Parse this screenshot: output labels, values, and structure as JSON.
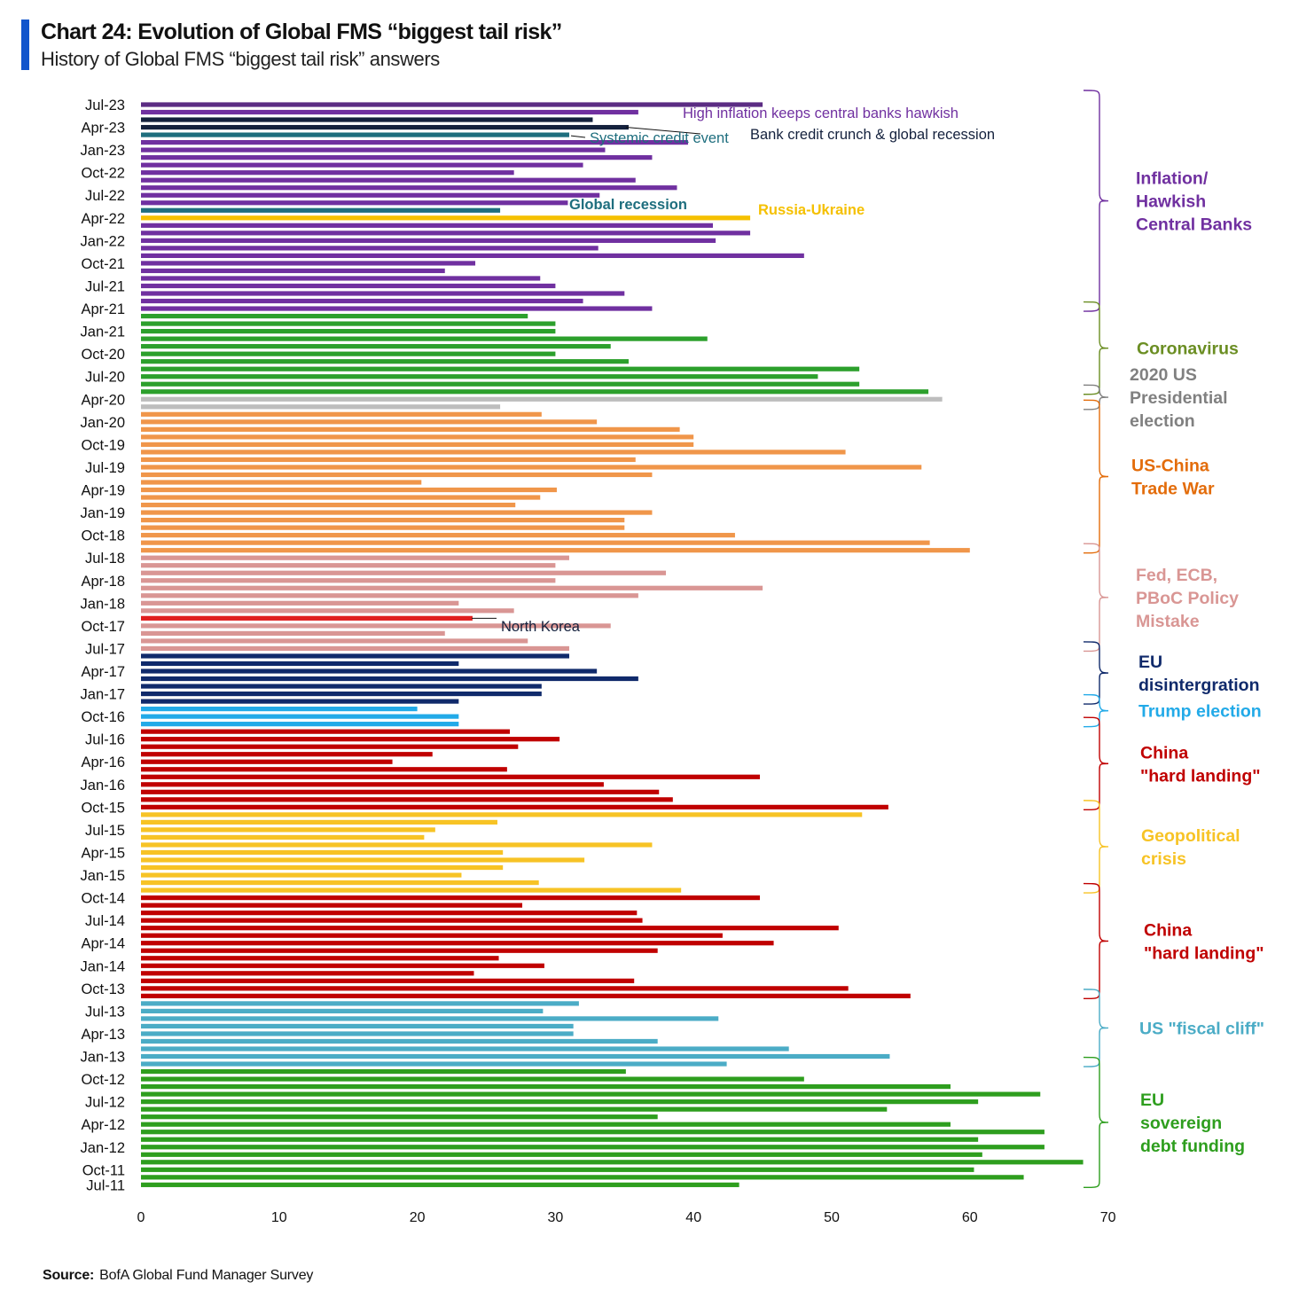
{
  "header": {
    "title": "Chart 24: Evolution of Global FMS “biggest tail risk”",
    "subtitle": "History of Global FMS “biggest tail risk” answers"
  },
  "source": {
    "label": "Source:",
    "text": "BofA Global Fund Manager Survey"
  },
  "colors": {
    "inflation": "#7030a0",
    "inflation_dark": "#5b2c83",
    "credit_crunch": "#14213d",
    "systemic": "#1e6e7e",
    "global_recession": "#1e6e7e",
    "russia": "#f5c000",
    "coronavirus": "#2ca02c",
    "coronavirus_label": "#6b8e23",
    "election2020": "#bdbdbd",
    "election2020_label": "#808080",
    "trade_war": "#f0964a",
    "trade_war_label": "#e36c0a",
    "policy": "#d99694",
    "north_korea": "#e01e1e",
    "eu_disint": "#102a6b",
    "trump": "#22aae8",
    "china": "#c00000",
    "geopolitical": "#f7c325",
    "fiscal_cliff": "#4bacc6",
    "eu_debt": "#2e9e1e"
  },
  "chart_data": {
    "type": "bar",
    "orientation": "horizontal",
    "xlim": [
      0,
      70
    ],
    "xticks": [
      0,
      10,
      20,
      30,
      40,
      50,
      60,
      70
    ],
    "ytick_labels": [
      "Jul-23",
      "Apr-23",
      "Jan-23",
      "Oct-22",
      "Jul-22",
      "Apr-22",
      "Jan-22",
      "Oct-21",
      "Jul-21",
      "Apr-21",
      "Jan-21",
      "Oct-20",
      "Jul-20",
      "Apr-20",
      "Jan-20",
      "Oct-19",
      "Jul-19",
      "Apr-19",
      "Jan-19",
      "Oct-18",
      "Jul-18",
      "Apr-18",
      "Jan-18",
      "Oct-17",
      "Jul-17",
      "Apr-17",
      "Jan-17",
      "Oct-16",
      "Jul-16",
      "Apr-16",
      "Jan-16",
      "Oct-15",
      "Jul-15",
      "Apr-15",
      "Jan-15",
      "Oct-14",
      "Jul-14",
      "Apr-14",
      "Jan-14",
      "Oct-13",
      "Jul-13",
      "Apr-13",
      "Jan-13",
      "Oct-12",
      "Jul-12",
      "Apr-12",
      "Jan-12",
      "Oct-11",
      "Jul-11"
    ],
    "bars": [
      {
        "date": "Jul-23",
        "value": 45,
        "group": "inflation_dark"
      },
      {
        "date": "Jun-23",
        "value": 36,
        "group": "inflation"
      },
      {
        "date": "May-23",
        "value": 32.7,
        "group": "credit_crunch"
      },
      {
        "date": "Apr-23",
        "value": 35.3,
        "group": "credit_crunch"
      },
      {
        "date": "Mar-23",
        "value": 31,
        "group": "systemic"
      },
      {
        "date": "Feb-23",
        "value": 39.6,
        "group": "inflation"
      },
      {
        "date": "Jan-23",
        "value": 33.6,
        "group": "inflation"
      },
      {
        "date": "Dec-22",
        "value": 37,
        "group": "inflation"
      },
      {
        "date": "Nov-22",
        "value": 32,
        "group": "inflation"
      },
      {
        "date": "Oct-22",
        "value": 27,
        "group": "inflation"
      },
      {
        "date": "Sep-22",
        "value": 35.8,
        "group": "inflation"
      },
      {
        "date": "Aug-22",
        "value": 38.8,
        "group": "inflation"
      },
      {
        "date": "Jul-22",
        "value": 33.2,
        "group": "inflation"
      },
      {
        "date": "Jun-22",
        "value": 30.9,
        "group": "inflation"
      },
      {
        "date": "May-22",
        "value": 26,
        "group": "global_recession"
      },
      {
        "date": "Apr-22",
        "value": 44.1,
        "group": "russia"
      },
      {
        "date": "Mar-22",
        "value": 41.4,
        "group": "inflation"
      },
      {
        "date": "Feb-22",
        "value": 44.1,
        "group": "inflation"
      },
      {
        "date": "Jan-22",
        "value": 41.6,
        "group": "inflation"
      },
      {
        "date": "Dec-21",
        "value": 33.1,
        "group": "inflation"
      },
      {
        "date": "Nov-21",
        "value": 48,
        "group": "inflation"
      },
      {
        "date": "Oct-21",
        "value": 24.2,
        "group": "inflation"
      },
      {
        "date": "Sep-21",
        "value": 22,
        "group": "inflation"
      },
      {
        "date": "Aug-21",
        "value": 28.9,
        "group": "inflation"
      },
      {
        "date": "Jul-21",
        "value": 30,
        "group": "inflation"
      },
      {
        "date": "Jun-21",
        "value": 35,
        "group": "inflation"
      },
      {
        "date": "May-21",
        "value": 32,
        "group": "inflation"
      },
      {
        "date": "Apr-21",
        "value": 37,
        "group": "inflation"
      },
      {
        "date": "Mar-21",
        "value": 28,
        "group": "coronavirus"
      },
      {
        "date": "Feb-21",
        "value": 30,
        "group": "coronavirus"
      },
      {
        "date": "Jan-21",
        "value": 30,
        "group": "coronavirus"
      },
      {
        "date": "Dec-20",
        "value": 41,
        "group": "coronavirus"
      },
      {
        "date": "Nov-20",
        "value": 34,
        "group": "coronavirus"
      },
      {
        "date": "Oct-20",
        "value": 30,
        "group": "coronavirus"
      },
      {
        "date": "Sep-20",
        "value": 35.3,
        "group": "coronavirus"
      },
      {
        "date": "Aug-20",
        "value": 52,
        "group": "coronavirus"
      },
      {
        "date": "Jul-20",
        "value": 49,
        "group": "coronavirus"
      },
      {
        "date": "Jun-20",
        "value": 52,
        "group": "coronavirus"
      },
      {
        "date": "May-20",
        "value": 57,
        "group": "coronavirus"
      },
      {
        "date": "Apr-20",
        "value": 58,
        "group": "election2020"
      },
      {
        "date": "Mar-20",
        "value": 26,
        "group": "election2020"
      },
      {
        "date": "Feb-20",
        "value": 29,
        "group": "trade_war"
      },
      {
        "date": "Jan-20",
        "value": 33,
        "group": "trade_war"
      },
      {
        "date": "Dec-19",
        "value": 39,
        "group": "trade_war"
      },
      {
        "date": "Nov-19",
        "value": 40,
        "group": "trade_war"
      },
      {
        "date": "Oct-19",
        "value": 40,
        "group": "trade_war"
      },
      {
        "date": "Sep-19",
        "value": 51,
        "group": "trade_war"
      },
      {
        "date": "Aug-19",
        "value": 35.8,
        "group": "trade_war"
      },
      {
        "date": "Jul-19",
        "value": 56.5,
        "group": "trade_war"
      },
      {
        "date": "Jun-19",
        "value": 37,
        "group": "trade_war"
      },
      {
        "date": "May-19",
        "value": 20.3,
        "group": "trade_war"
      },
      {
        "date": "Apr-19",
        "value": 30.1,
        "group": "trade_war"
      },
      {
        "date": "Mar-19",
        "value": 28.9,
        "group": "trade_war"
      },
      {
        "date": "Feb-19",
        "value": 27.1,
        "group": "trade_war"
      },
      {
        "date": "Jan-19",
        "value": 37,
        "group": "trade_war"
      },
      {
        "date": "Dec-18",
        "value": 35,
        "group": "trade_war"
      },
      {
        "date": "Nov-18",
        "value": 35,
        "group": "trade_war"
      },
      {
        "date": "Oct-18",
        "value": 43,
        "group": "trade_war"
      },
      {
        "date": "Sep-18",
        "value": 57.1,
        "group": "trade_war"
      },
      {
        "date": "Aug-18",
        "value": 60,
        "group": "trade_war"
      },
      {
        "date": "Jul-18",
        "value": 31,
        "group": "policy"
      },
      {
        "date": "Jun-18",
        "value": 30,
        "group": "policy"
      },
      {
        "date": "May-18",
        "value": 38,
        "group": "policy"
      },
      {
        "date": "Apr-18",
        "value": 30,
        "group": "policy"
      },
      {
        "date": "Mar-18",
        "value": 45,
        "group": "policy"
      },
      {
        "date": "Feb-18",
        "value": 36,
        "group": "policy"
      },
      {
        "date": "Jan-18",
        "value": 23,
        "group": "policy"
      },
      {
        "date": "Dec-17",
        "value": 27,
        "group": "policy"
      },
      {
        "date": "Nov-17",
        "value": 24,
        "group": "north_korea"
      },
      {
        "date": "Oct-17",
        "value": 34,
        "group": "policy"
      },
      {
        "date": "Sep-17",
        "value": 22,
        "group": "policy"
      },
      {
        "date": "Aug-17",
        "value": 28,
        "group": "policy"
      },
      {
        "date": "Jul-17",
        "value": 31,
        "group": "policy"
      },
      {
        "date": "Jun-17",
        "value": 31,
        "group": "eu_disint"
      },
      {
        "date": "May-17",
        "value": 23,
        "group": "eu_disint"
      },
      {
        "date": "Apr-17",
        "value": 33,
        "group": "eu_disint"
      },
      {
        "date": "Mar-17",
        "value": 36,
        "group": "eu_disint"
      },
      {
        "date": "Feb-17",
        "value": 29,
        "group": "eu_disint"
      },
      {
        "date": "Jan-17",
        "value": 29,
        "group": "eu_disint"
      },
      {
        "date": "Dec-16",
        "value": 23,
        "group": "eu_disint"
      },
      {
        "date": "Nov-16",
        "value": 20,
        "group": "trump"
      },
      {
        "date": "Oct-16",
        "value": 23,
        "group": "trump"
      },
      {
        "date": "Sep-16",
        "value": 23,
        "group": "trump"
      },
      {
        "date": "Aug-16",
        "value": 26.7,
        "group": "china"
      },
      {
        "date": "Jul-16",
        "value": 30.3,
        "group": "china"
      },
      {
        "date": "Jun-16",
        "value": 27.3,
        "group": "china"
      },
      {
        "date": "May-16",
        "value": 21.1,
        "group": "china"
      },
      {
        "date": "Apr-16",
        "value": 18.2,
        "group": "china"
      },
      {
        "date": "Mar-16",
        "value": 26.5,
        "group": "china"
      },
      {
        "date": "Feb-16",
        "value": 44.8,
        "group": "china"
      },
      {
        "date": "Jan-16",
        "value": 33.5,
        "group": "china"
      },
      {
        "date": "Dec-15",
        "value": 37.5,
        "group": "china"
      },
      {
        "date": "Nov-15",
        "value": 38.5,
        "group": "china"
      },
      {
        "date": "Oct-15",
        "value": 54.1,
        "group": "china"
      },
      {
        "date": "Sep-15",
        "value": 52.2,
        "group": "geopolitical"
      },
      {
        "date": "Aug-15",
        "value": 25.8,
        "group": "geopolitical"
      },
      {
        "date": "Jul-15",
        "value": 21.3,
        "group": "geopolitical"
      },
      {
        "date": "Jun-15",
        "value": 20.5,
        "group": "geopolitical"
      },
      {
        "date": "May-15",
        "value": 37,
        "group": "geopolitical"
      },
      {
        "date": "Apr-15",
        "value": 26.2,
        "group": "geopolitical"
      },
      {
        "date": "Mar-15",
        "value": 32.1,
        "group": "geopolitical"
      },
      {
        "date": "Feb-15",
        "value": 26.2,
        "group": "geopolitical"
      },
      {
        "date": "Jan-15",
        "value": 23.2,
        "group": "geopolitical"
      },
      {
        "date": "Dec-14",
        "value": 28.8,
        "group": "geopolitical"
      },
      {
        "date": "Nov-14",
        "value": 39.1,
        "group": "geopolitical"
      },
      {
        "date": "Oct-14",
        "value": 44.8,
        "group": "china"
      },
      {
        "date": "Sep-14",
        "value": 27.6,
        "group": "china"
      },
      {
        "date": "Aug-14",
        "value": 35.9,
        "group": "china"
      },
      {
        "date": "Jul-14",
        "value": 36.3,
        "group": "china"
      },
      {
        "date": "Jun-14",
        "value": 50.5,
        "group": "china"
      },
      {
        "date": "May-14",
        "value": 42.1,
        "group": "china"
      },
      {
        "date": "Apr-14",
        "value": 45.8,
        "group": "china"
      },
      {
        "date": "Mar-14",
        "value": 37.4,
        "group": "china"
      },
      {
        "date": "Feb-14",
        "value": 25.9,
        "group": "china"
      },
      {
        "date": "Jan-14",
        "value": 29.2,
        "group": "china"
      },
      {
        "date": "Dec-13",
        "value": 24.1,
        "group": "china"
      },
      {
        "date": "Nov-13",
        "value": 35.7,
        "group": "china"
      },
      {
        "date": "Oct-13",
        "value": 51.2,
        "group": "china"
      },
      {
        "date": "Sep-13",
        "value": 55.7,
        "group": "china"
      },
      {
        "date": "Aug-13",
        "value": 31.7,
        "group": "fiscal_cliff"
      },
      {
        "date": "Jul-13",
        "value": 29.1,
        "group": "fiscal_cliff"
      },
      {
        "date": "Jun-13",
        "value": 41.8,
        "group": "fiscal_cliff"
      },
      {
        "date": "May-13",
        "value": 31.3,
        "group": "fiscal_cliff"
      },
      {
        "date": "Apr-13",
        "value": 31.3,
        "group": "fiscal_cliff"
      },
      {
        "date": "Mar-13",
        "value": 37.4,
        "group": "fiscal_cliff"
      },
      {
        "date": "Feb-13",
        "value": 46.9,
        "group": "fiscal_cliff"
      },
      {
        "date": "Jan-13",
        "value": 54.2,
        "group": "fiscal_cliff"
      },
      {
        "date": "Dec-12",
        "value": 42.4,
        "group": "fiscal_cliff"
      },
      {
        "date": "Nov-12",
        "value": 35.1,
        "group": "eu_debt"
      },
      {
        "date": "Oct-12",
        "value": 48,
        "group": "eu_debt"
      },
      {
        "date": "Sep-12",
        "value": 58.6,
        "group": "eu_debt"
      },
      {
        "date": "Aug-12",
        "value": 65.1,
        "group": "eu_debt"
      },
      {
        "date": "Jul-12",
        "value": 60.6,
        "group": "eu_debt"
      },
      {
        "date": "Jun-12",
        "value": 54,
        "group": "eu_debt"
      },
      {
        "date": "May-12",
        "value": 37.4,
        "group": "eu_debt"
      },
      {
        "date": "Apr-12",
        "value": 58.6,
        "group": "eu_debt"
      },
      {
        "date": "Mar-12",
        "value": 65.4,
        "group": "eu_debt"
      },
      {
        "date": "Feb-12",
        "value": 60.6,
        "group": "eu_debt"
      },
      {
        "date": "Jan-12",
        "value": 65.4,
        "group": "eu_debt"
      },
      {
        "date": "Dec-11",
        "value": 60.9,
        "group": "eu_debt"
      },
      {
        "date": "Nov-11",
        "value": 68.2,
        "group": "eu_debt"
      },
      {
        "date": "Oct-11",
        "value": 60.3,
        "group": "eu_debt"
      },
      {
        "date": "Sep-11",
        "value": 63.9,
        "group": "eu_debt"
      },
      {
        "date": "Jul-11",
        "value": 43.3,
        "group": "eu_debt"
      }
    ],
    "annotations": [
      {
        "text": "High inflation keeps central banks hawkish",
        "color_key": "inflation"
      },
      {
        "text": "Bank credit crunch & global recession",
        "color_key": "credit_crunch"
      },
      {
        "text": "Systemic credit event",
        "color_key": "systemic"
      },
      {
        "text": "Global recession",
        "color_key": "global_recession"
      },
      {
        "text": "Russia-Ukraine",
        "color_key": "russia"
      },
      {
        "text": "North Korea",
        "color_key": "credit_crunch"
      }
    ],
    "regime_labels": [
      {
        "lines": [
          "Inflation/",
          "Hawkish",
          "Central Banks"
        ],
        "color_key": "inflation",
        "from": 0,
        "to": 27
      },
      {
        "lines": [
          "Coronavirus"
        ],
        "color_key": "coronavirus_label",
        "from": 28,
        "to": 38
      },
      {
        "lines": [
          "2020 US",
          "Presidential",
          "election"
        ],
        "color_key": "election2020_label",
        "from": 39,
        "to": 40
      },
      {
        "lines": [
          "US-China",
          "Trade War"
        ],
        "color_key": "trade_war_label",
        "from": 41,
        "to": 59
      },
      {
        "lines": [
          "Fed, ECB,",
          "PBoC Policy",
          "Mistake"
        ],
        "color_key": "policy",
        "from": 60,
        "to": 72
      },
      {
        "lines": [
          "EU",
          "disintergration"
        ],
        "color_key": "eu_disint",
        "from": 73,
        "to": 79
      },
      {
        "lines": [
          "Trump election"
        ],
        "color_key": "trump",
        "from": 80,
        "to": 82
      },
      {
        "lines": [
          "China",
          "\"hard landing\""
        ],
        "color_key": "china",
        "from": 83,
        "to": 93
      },
      {
        "lines": [
          "Geopolitical",
          "crisis"
        ],
        "color_key": "geopolitical",
        "from": 94,
        "to": 104
      },
      {
        "lines": [
          "China",
          "\"hard landing\""
        ],
        "color_key": "china",
        "from": 105,
        "to": 118
      },
      {
        "lines": [
          "US \"fiscal cliff\""
        ],
        "color_key": "fiscal_cliff",
        "from": 119,
        "to": 127
      },
      {
        "lines": [
          "EU",
          "sovereign",
          "debt funding"
        ],
        "color_key": "eu_debt",
        "from": 128,
        "to": 143
      }
    ]
  }
}
